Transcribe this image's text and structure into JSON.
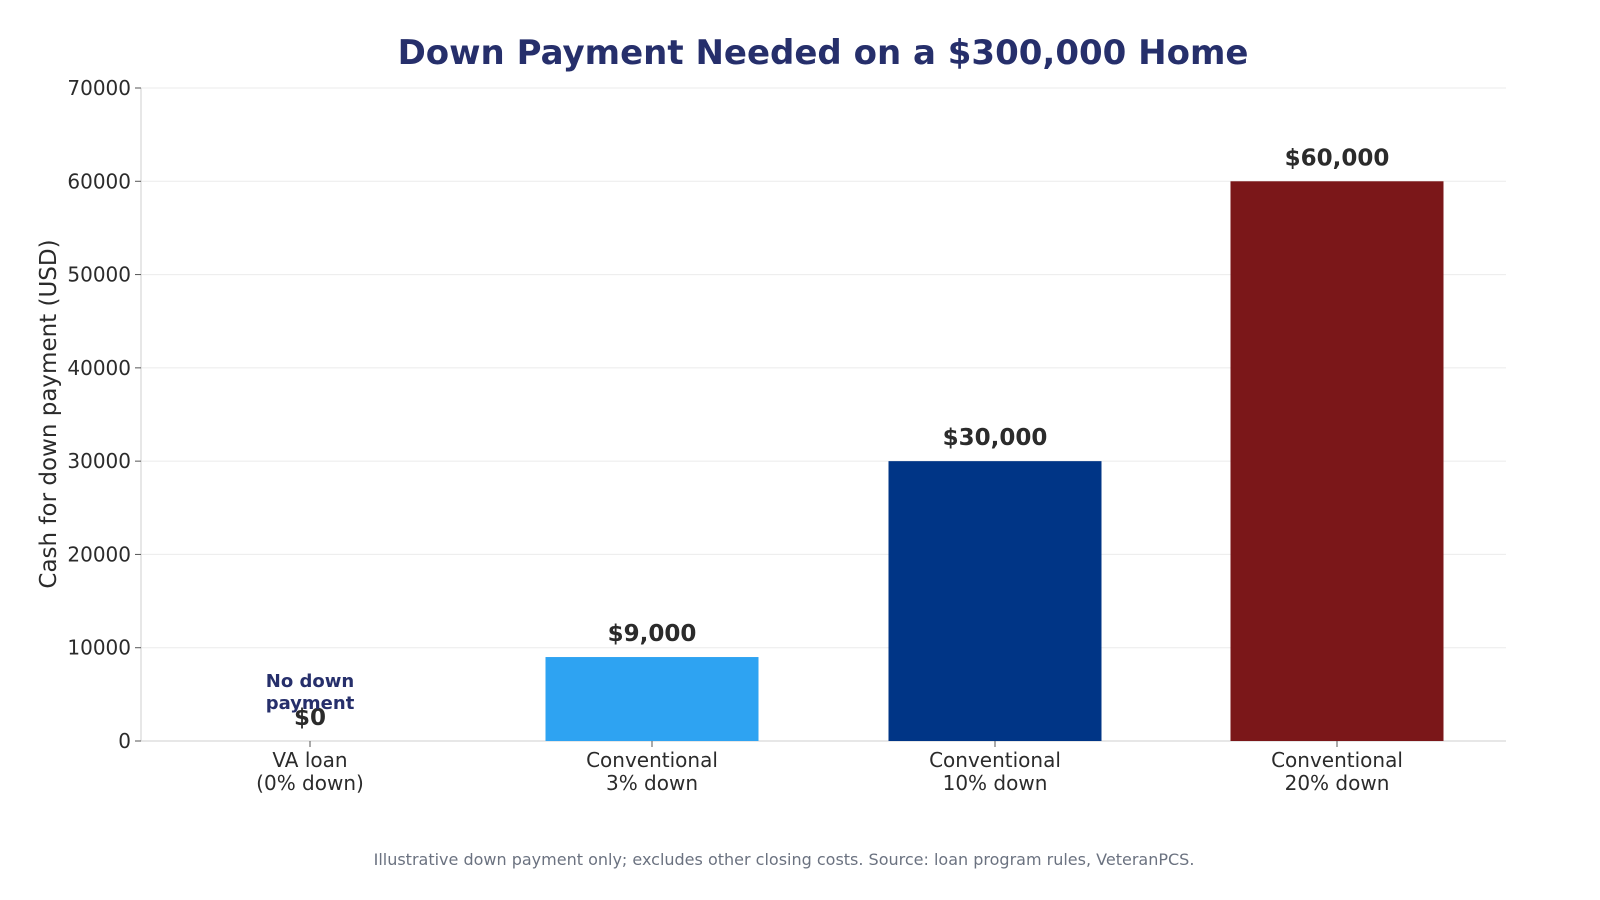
{
  "chart_data": {
    "type": "bar",
    "title": "Down Payment Needed on a $300,000 Home",
    "xlabel": "",
    "ylabel": "Cash for down payment (USD)",
    "ylim": [
      0,
      70000
    ],
    "yticks": [
      "0",
      "10000",
      "20000",
      "30000",
      "40000",
      "50000",
      "60000",
      "70000"
    ],
    "grid": true,
    "categories": [
      [
        "VA loan",
        "(0% down)"
      ],
      [
        "Conventional",
        "3% down"
      ],
      [
        "Conventional",
        "10% down"
      ],
      [
        "Conventional",
        "20% down"
      ]
    ],
    "values": [
      0,
      9000,
      30000,
      60000
    ],
    "value_labels": [
      "$0",
      "$9,000",
      "$30,000",
      "$60,000"
    ],
    "colors": [
      "#2ea3f2",
      "#2ea3f2",
      "#003586",
      "#7b1719"
    ],
    "annotations": [
      {
        "category_index": 0,
        "lines": [
          "No down",
          "payment"
        ]
      }
    ],
    "footnote": "Illustrative down payment only; excludes other closing costs. Source: loan program rules, VeteranPCS."
  }
}
